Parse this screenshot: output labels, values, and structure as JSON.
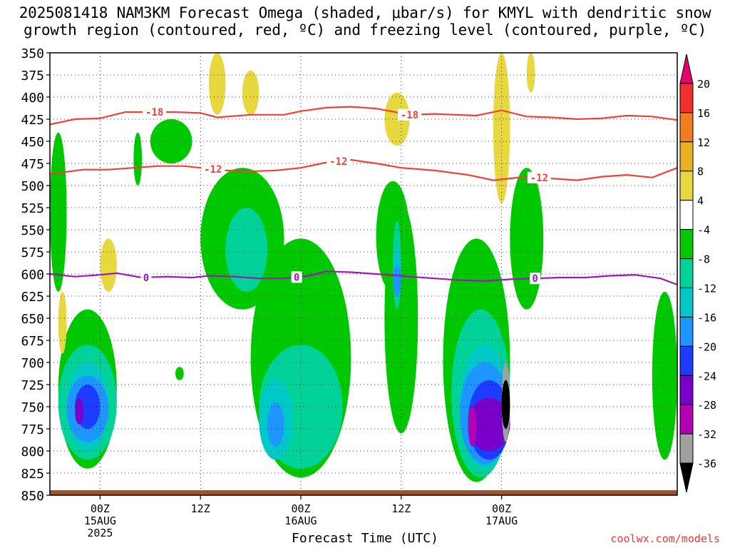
{
  "header": {
    "title_line1": "2025081418 NAM3KM Forecast Omega (shaded, μbar/s) for KMYL with dendritic snow",
    "title_line2": "growth region (contoured, red, ºC) and freezing level (contoured, purple, ºC)"
  },
  "footer": {
    "credit": "coolwx.com/models"
  },
  "chart_data": {
    "type": "heatmap",
    "xlabel": "Forecast Time (UTC)",
    "ylabel": "",
    "x_range": [
      -6,
      69
    ],
    "y_range": [
      350,
      850
    ],
    "y_ticks": [
      350,
      375,
      400,
      425,
      450,
      475,
      500,
      525,
      550,
      575,
      600,
      625,
      650,
      675,
      700,
      725,
      750,
      775,
      800,
      825,
      850
    ],
    "x_ticks": [
      {
        "hour": 0,
        "labels": [
          "00Z",
          "15AUG",
          "2025"
        ]
      },
      {
        "hour": 12,
        "labels": [
          "12Z"
        ]
      },
      {
        "hour": 24,
        "labels": [
          "00Z",
          "16AUG"
        ]
      },
      {
        "hour": 36,
        "labels": [
          "12Z"
        ]
      },
      {
        "hour": 48,
        "labels": [
          "00Z",
          "17AUG"
        ]
      }
    ],
    "grid": "dotted",
    "colorbar": {
      "levels": [
        20,
        16,
        12,
        8,
        4,
        -4,
        -8,
        -12,
        -16,
        -20,
        -24,
        -28,
        -32,
        -36
      ],
      "colors": [
        "#e8006f",
        "#f0302a",
        "#f07d1e",
        "#e8b21e",
        "#e8d840",
        "#ffffff",
        "#00c800",
        "#00d29a",
        "#00c8c8",
        "#1e96ff",
        "#1e3cff",
        "#7800c8",
        "#b400b4",
        "#a0a0a0",
        "#000000"
      ]
    },
    "omega_regions": [
      {
        "level": -4,
        "t0": -6,
        "t1": -4,
        "p_top": 440,
        "p_bot": 620
      },
      {
        "level": -4,
        "t0": 6,
        "t1": 11,
        "p_top": 425,
        "p_bot": 475
      },
      {
        "level": -4,
        "t0": 4,
        "t1": 5,
        "p_top": 440,
        "p_bot": 500
      },
      {
        "level": -4,
        "t0": 9,
        "t1": 10,
        "p_top": 705,
        "p_bot": 720
      },
      {
        "level": -4,
        "t0": 12,
        "t1": 22,
        "p_top": 480,
        "p_bot": 640
      },
      {
        "level": -8,
        "t0": 15,
        "t1": 20,
        "p_top": 525,
        "p_bot": 620
      },
      {
        "level": -4,
        "t0": -5,
        "t1": 2,
        "p_top": 640,
        "p_bot": 820
      },
      {
        "level": -8,
        "t0": -5,
        "t1": 2,
        "p_top": 680,
        "p_bot": 810
      },
      {
        "level": -12,
        "t0": -4,
        "t1": 1,
        "p_top": 700,
        "p_bot": 800
      },
      {
        "level": -16,
        "t0": -4,
        "t1": 1,
        "p_top": 715,
        "p_bot": 790
      },
      {
        "level": -20,
        "t0": -3,
        "t1": 0,
        "p_top": 725,
        "p_bot": 775
      },
      {
        "level": -24,
        "t0": -3,
        "t1": -2,
        "p_top": 740,
        "p_bot": 770
      },
      {
        "level": -4,
        "t0": 18,
        "t1": 30,
        "p_top": 560,
        "p_bot": 830
      },
      {
        "level": -8,
        "t0": 19,
        "t1": 29,
        "p_top": 680,
        "p_bot": 820
      },
      {
        "level": -12,
        "t0": 19,
        "t1": 23,
        "p_top": 720,
        "p_bot": 810
      },
      {
        "level": -16,
        "t0": 20,
        "t1": 22,
        "p_top": 745,
        "p_bot": 795
      },
      {
        "level": -4,
        "t0": 33,
        "t1": 37,
        "p_top": 495,
        "p_bot": 620
      },
      {
        "level": -4,
        "t0": 34,
        "t1": 38,
        "p_top": 520,
        "p_bot": 780
      },
      {
        "level": -8,
        "t0": 35,
        "t1": 36,
        "p_top": 540,
        "p_bot": 640
      },
      {
        "level": -12,
        "t0": 35,
        "t1": 36,
        "p_top": 570,
        "p_bot": 630
      },
      {
        "level": -16,
        "t0": 35,
        "t1": 36,
        "p_top": 590,
        "p_bot": 625
      },
      {
        "level": -4,
        "t0": 41,
        "t1": 49,
        "p_top": 560,
        "p_bot": 835
      },
      {
        "level": -8,
        "t0": 42,
        "t1": 49,
        "p_top": 640,
        "p_bot": 830
      },
      {
        "level": -12,
        "t0": 43,
        "t1": 49,
        "p_top": 680,
        "p_bot": 820
      },
      {
        "level": -16,
        "t0": 43,
        "t1": 49,
        "p_top": 700,
        "p_bot": 815
      },
      {
        "level": -20,
        "t0": 44,
        "t1": 49,
        "p_top": 720,
        "p_bot": 810
      },
      {
        "level": -24,
        "t0": 44,
        "t1": 49,
        "p_top": 740,
        "p_bot": 800
      },
      {
        "level": -28,
        "t0": 44,
        "t1": 45,
        "p_top": 750,
        "p_bot": 795
      },
      {
        "level": -32,
        "t0": 48,
        "t1": 49,
        "p_top": 700,
        "p_bot": 790
      },
      {
        "level": -36,
        "t0": 48,
        "t1": 49,
        "p_top": 720,
        "p_bot": 775
      },
      {
        "level": -4,
        "t0": 49,
        "t1": 53,
        "p_top": 480,
        "p_bot": 640
      },
      {
        "level": -4,
        "t0": 66,
        "t1": 69,
        "p_top": 620,
        "p_bot": 810
      },
      {
        "level": 4,
        "t0": 13,
        "t1": 15,
        "p_top": 350,
        "p_bot": 420
      },
      {
        "level": 4,
        "t0": 17,
        "t1": 19,
        "p_top": 370,
        "p_bot": 420
      },
      {
        "level": 4,
        "t0": 0,
        "t1": 2,
        "p_top": 560,
        "p_bot": 620
      },
      {
        "level": 4,
        "t0": -5,
        "t1": -4,
        "p_top": 620,
        "p_bot": 690
      },
      {
        "level": 4,
        "t0": 34,
        "t1": 37,
        "p_top": 395,
        "p_bot": 455
      },
      {
        "level": 4,
        "t0": 47,
        "t1": 49,
        "p_top": 350,
        "p_bot": 520
      },
      {
        "level": 4,
        "t0": 51,
        "t1": 52,
        "p_top": 350,
        "p_bot": 395
      }
    ],
    "contours": [
      {
        "label": "-18",
        "color": "#f0403a",
        "label_hours": [
          6.5,
          37
        ],
        "points": [
          [
            -6,
            431
          ],
          [
            -3,
            425
          ],
          [
            0,
            424
          ],
          [
            3,
            417
          ],
          [
            6,
            417
          ],
          [
            9,
            417
          ],
          [
            12,
            418
          ],
          [
            14,
            423
          ],
          [
            18,
            420
          ],
          [
            22,
            420
          ],
          [
            24,
            416
          ],
          [
            27,
            412
          ],
          [
            30,
            411
          ],
          [
            33,
            413
          ],
          [
            37,
            420
          ],
          [
            40,
            419
          ],
          [
            45,
            421
          ],
          [
            48,
            415
          ],
          [
            51,
            422
          ],
          [
            54,
            423
          ],
          [
            57,
            425
          ],
          [
            60,
            424
          ],
          [
            63,
            421
          ],
          [
            66,
            422
          ],
          [
            69,
            426
          ]
        ]
      },
      {
        "label": "-12",
        "color": "#f0403a",
        "label_hours": [
          13.5,
          28.5,
          52.5
        ],
        "points": [
          [
            -6,
            487
          ],
          [
            -2,
            482
          ],
          [
            1,
            482
          ],
          [
            4,
            480
          ],
          [
            7,
            478
          ],
          [
            10,
            478
          ],
          [
            12,
            480
          ],
          [
            15,
            483
          ],
          [
            18,
            484
          ],
          [
            21,
            483
          ],
          [
            24,
            480
          ],
          [
            27,
            474
          ],
          [
            30,
            471
          ],
          [
            33,
            475
          ],
          [
            36,
            480
          ],
          [
            40,
            483
          ],
          [
            44,
            488
          ],
          [
            47,
            494
          ],
          [
            51,
            490
          ],
          [
            54,
            492
          ],
          [
            57,
            494
          ],
          [
            60,
            490
          ],
          [
            63,
            488
          ],
          [
            66,
            491
          ],
          [
            69,
            480
          ]
        ]
      },
      {
        "label": "0",
        "color": "#9a1ab4",
        "label_hours": [
          5.5,
          23.5,
          52
        ],
        "points": [
          [
            -6,
            600
          ],
          [
            -3,
            603
          ],
          [
            0,
            601
          ],
          [
            2,
            599
          ],
          [
            5,
            604
          ],
          [
            8,
            603
          ],
          [
            11,
            604
          ],
          [
            13,
            602
          ],
          [
            16,
            603
          ],
          [
            19,
            605
          ],
          [
            22,
            605
          ],
          [
            25,
            602
          ],
          [
            27,
            597
          ],
          [
            30,
            598
          ],
          [
            33,
            600
          ],
          [
            37,
            603
          ],
          [
            40,
            605
          ],
          [
            43,
            607
          ],
          [
            46,
            608
          ],
          [
            49,
            606
          ],
          [
            52,
            605
          ],
          [
            55,
            604
          ],
          [
            58,
            604
          ],
          [
            61,
            602
          ],
          [
            64,
            601
          ],
          [
            67,
            605
          ],
          [
            69,
            612
          ]
        ]
      }
    ]
  }
}
